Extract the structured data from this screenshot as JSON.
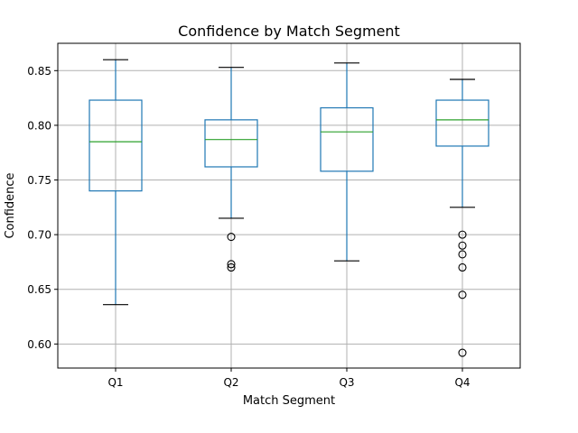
{
  "chart_data": {
    "type": "box",
    "title": "Confidence by Match Segment",
    "xlabel": "Match Segment",
    "ylabel": "Confidence",
    "ylim": [
      0.578,
      0.875
    ],
    "grid": true,
    "categories": [
      "Q1",
      "Q2",
      "Q3",
      "Q4"
    ],
    "y_ticks": [
      "0.60",
      "0.65",
      "0.70",
      "0.75",
      "0.80",
      "0.85"
    ],
    "boxes": [
      {
        "category": "Q1",
        "whisker_low": 0.636,
        "q1": 0.74,
        "median": 0.785,
        "q3": 0.823,
        "whisker_high": 0.86,
        "outliers": []
      },
      {
        "category": "Q2",
        "whisker_low": 0.715,
        "q1": 0.762,
        "median": 0.787,
        "q3": 0.805,
        "whisker_high": 0.853,
        "outliers": [
          0.698,
          0.673,
          0.67
        ]
      },
      {
        "category": "Q3",
        "whisker_low": 0.676,
        "q1": 0.758,
        "median": 0.794,
        "q3": 0.816,
        "whisker_high": 0.857,
        "outliers": []
      },
      {
        "category": "Q4",
        "whisker_low": 0.725,
        "q1": 0.781,
        "median": 0.805,
        "q3": 0.823,
        "whisker_high": 0.842,
        "outliers": [
          0.7,
          0.69,
          0.682,
          0.67,
          0.645,
          0.592
        ]
      }
    ],
    "colors": {
      "box": "#1f77b4",
      "median": "#2ca02c",
      "whisker_cap": "#000000",
      "grid": "#b0b0b0",
      "outlier": "#000000"
    }
  }
}
